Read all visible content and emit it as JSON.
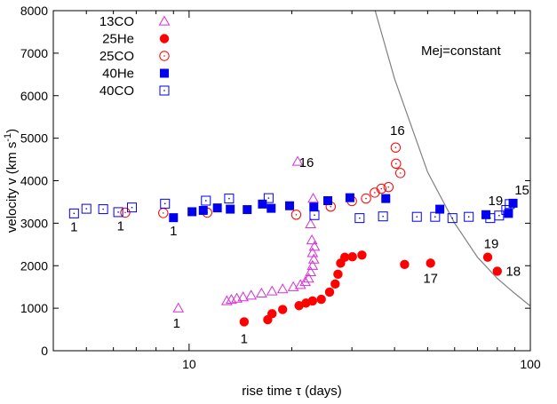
{
  "chart_data": {
    "type": "scatter",
    "xscale": "log",
    "xlim": [
      4,
      100
    ],
    "ylim": [
      0,
      8000
    ],
    "xlabel": "rise time τ (days)",
    "ylabel": "velocity v (km s⁻¹)",
    "x_ticks": [
      {
        "value": 10,
        "label": "10"
      },
      {
        "value": 100,
        "label": "100"
      }
    ],
    "y_ticks": [
      0,
      1000,
      2000,
      3000,
      4000,
      5000,
      6000,
      7000,
      8000
    ],
    "y_tick_labels": [
      "0",
      "1000",
      "2000",
      "3000",
      "4000",
      "5000",
      "6000",
      "7000",
      "8000"
    ],
    "legend_position": "top-left",
    "series": [
      {
        "name": "13CO",
        "marker": "triangle-open",
        "color": "#d62fd6",
        "points": [
          [
            9.3,
            1000
          ],
          [
            12.9,
            1170
          ],
          [
            13.3,
            1200
          ],
          [
            13.8,
            1230
          ],
          [
            14.4,
            1260
          ],
          [
            15.2,
            1300
          ],
          [
            16.3,
            1350
          ],
          [
            17.5,
            1400
          ],
          [
            18.8,
            1450
          ],
          [
            20.2,
            1500
          ],
          [
            21.2,
            1550
          ],
          [
            21.9,
            1620
          ],
          [
            22.4,
            1700
          ],
          [
            22.7,
            1850
          ],
          [
            23.0,
            2000
          ],
          [
            23.2,
            2150
          ],
          [
            23.0,
            2300
          ],
          [
            23.3,
            2450
          ],
          [
            22.9,
            2600
          ],
          [
            22.7,
            2980
          ],
          [
            23.1,
            3580
          ],
          [
            20.8,
            4450
          ]
        ]
      },
      {
        "name": "25He",
        "marker": "circle-filled",
        "color": "#ff0000",
        "points": [
          [
            14.5,
            680
          ],
          [
            17.0,
            730
          ],
          [
            17.5,
            870
          ],
          [
            18.8,
            970
          ],
          [
            21.0,
            1060
          ],
          [
            22.0,
            1120
          ],
          [
            23.0,
            1170
          ],
          [
            24.4,
            1210
          ],
          [
            25.8,
            1380
          ],
          [
            26.8,
            1570
          ],
          [
            27.3,
            1800
          ],
          [
            27.8,
            2060
          ],
          [
            28.6,
            2200
          ],
          [
            30.1,
            2210
          ],
          [
            32.1,
            2250
          ],
          [
            42.8,
            2030
          ],
          [
            51.0,
            2060
          ],
          [
            75.0,
            2200
          ],
          [
            80.0,
            1870
          ]
        ]
      },
      {
        "name": "25CO",
        "marker": "circle-open",
        "color": "#ff0000",
        "points": [
          [
            6.5,
            3250
          ],
          [
            8.4,
            3240
          ],
          [
            11.3,
            3250
          ],
          [
            20.6,
            3200
          ],
          [
            26.0,
            3390
          ],
          [
            30.0,
            3520
          ],
          [
            33.0,
            3580
          ],
          [
            35.0,
            3720
          ],
          [
            36.6,
            3810
          ],
          [
            38.4,
            3850
          ],
          [
            41.6,
            4180
          ],
          [
            40.4,
            4400
          ],
          [
            40.3,
            4780
          ]
        ]
      },
      {
        "name": "40He",
        "marker": "square-filled",
        "color": "#0000ee",
        "points": [
          [
            9.0,
            3130
          ],
          [
            10.2,
            3270
          ],
          [
            11.0,
            3300
          ],
          [
            12.1,
            3360
          ],
          [
            13.2,
            3330
          ],
          [
            14.8,
            3320
          ],
          [
            16.4,
            3450
          ],
          [
            17.4,
            3350
          ],
          [
            19.7,
            3410
          ],
          [
            23.2,
            3380
          ],
          [
            25.5,
            3530
          ],
          [
            29.6,
            3600
          ],
          [
            37.7,
            3580
          ],
          [
            54.3,
            3330
          ],
          [
            74.1,
            3200
          ],
          [
            86.3,
            3230
          ],
          [
            89.0,
            3470
          ]
        ]
      },
      {
        "name": "40CO",
        "marker": "square-open",
        "color": "#0000ee",
        "points": [
          [
            4.6,
            3230
          ],
          [
            5.0,
            3340
          ],
          [
            5.6,
            3330
          ],
          [
            6.2,
            3260
          ],
          [
            6.8,
            3370
          ],
          [
            8.5,
            3460
          ],
          [
            11.2,
            3530
          ],
          [
            13.1,
            3580
          ],
          [
            17.1,
            3590
          ],
          [
            23.3,
            3190
          ],
          [
            31.6,
            3120
          ],
          [
            37.0,
            3160
          ],
          [
            46.5,
            3150
          ],
          [
            52.6,
            3150
          ],
          [
            59.1,
            3120
          ],
          [
            66.0,
            3150
          ],
          [
            76.3,
            3120
          ],
          [
            81.0,
            3180
          ],
          [
            85.0,
            3310
          ],
          [
            87.0,
            3450
          ]
        ]
      }
    ],
    "curve": {
      "label": "Mej=constant",
      "color": "#808080",
      "points": [
        [
          35.1,
          8000
        ],
        [
          40,
          6400
        ],
        [
          50,
          4200
        ],
        [
          60,
          3000
        ],
        [
          70,
          2200
        ],
        [
          80,
          1700
        ],
        [
          90,
          1350
        ],
        [
          100,
          1050
        ]
      ]
    },
    "annotations": [
      {
        "text": "1",
        "x": 4.6,
        "y": 3230
      },
      {
        "text": "1",
        "x": 6.3,
        "y": 3250
      },
      {
        "text": "1",
        "x": 9.0,
        "y": 3130
      },
      {
        "text": "1",
        "x": 9.3,
        "y": 1000
      },
      {
        "text": "1",
        "x": 14.5,
        "y": 680
      },
      {
        "text": "16",
        "x": 20.8,
        "y": 4450
      },
      {
        "text": "16",
        "x": 40.3,
        "y": 4780
      },
      {
        "text": "17",
        "x": 51.0,
        "y": 2060
      },
      {
        "text": "18",
        "x": 80.0,
        "y": 1870
      },
      {
        "text": "19",
        "x": 75.0,
        "y": 2200
      },
      {
        "text": "19",
        "x": 81.0,
        "y": 3180
      },
      {
        "text": "15",
        "x": 89.0,
        "y": 3470
      }
    ]
  }
}
